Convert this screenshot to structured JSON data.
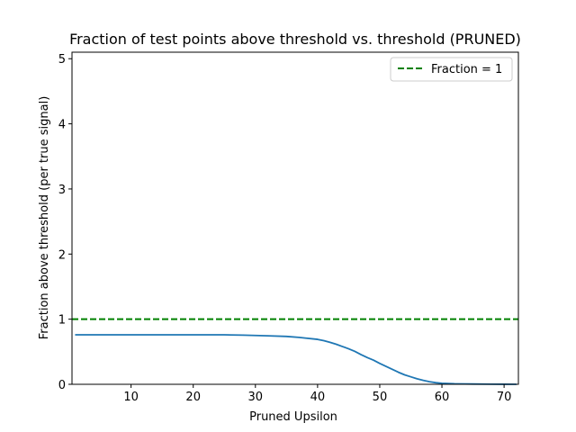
{
  "chart_data": {
    "type": "line",
    "title": "Fraction of test points above threshold vs. threshold (PRUNED)",
    "xlabel": "Pruned Upsilon",
    "ylabel": "Fraction above threshold (per true signal)",
    "xlim": [
      0.5,
      72.3
    ],
    "ylim": [
      0,
      5.1
    ],
    "xticks": [
      10,
      20,
      30,
      40,
      50,
      60,
      70
    ],
    "yticks": [
      0,
      1,
      2,
      3,
      4,
      5
    ],
    "grid": false,
    "legend_position": "top-right",
    "series": [
      {
        "color": "#1f77b4",
        "style": "solid",
        "x": [
          1,
          5,
          10,
          15,
          20,
          25,
          28,
          30,
          32,
          35,
          37,
          38,
          40,
          41,
          42,
          43,
          44,
          45,
          46,
          47,
          48,
          49,
          50,
          51,
          52,
          53,
          54,
          55,
          56,
          57,
          58,
          59,
          60,
          62,
          65,
          68,
          70,
          72
        ],
        "y": [
          0.76,
          0.76,
          0.76,
          0.76,
          0.76,
          0.76,
          0.755,
          0.75,
          0.745,
          0.735,
          0.72,
          0.71,
          0.69,
          0.67,
          0.645,
          0.615,
          0.58,
          0.545,
          0.505,
          0.455,
          0.41,
          0.37,
          0.32,
          0.275,
          0.23,
          0.185,
          0.145,
          0.115,
          0.085,
          0.06,
          0.04,
          0.025,
          0.015,
          0.008,
          0.004,
          0.002,
          0.001,
          0.0
        ]
      },
      {
        "name": "Fraction = 1",
        "color": "#008000",
        "style": "dashed",
        "y_constant": 1
      }
    ]
  }
}
